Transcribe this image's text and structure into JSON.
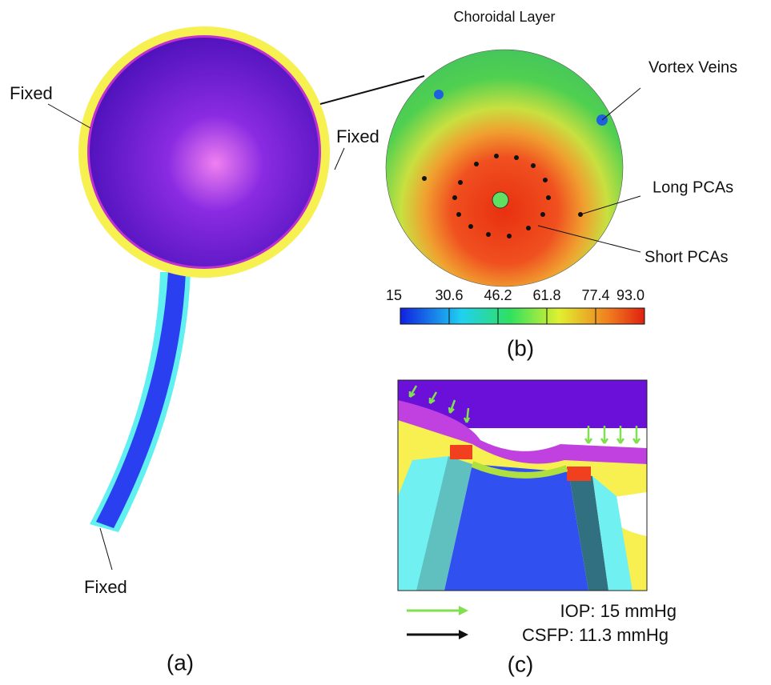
{
  "panel_a": {
    "labels": [
      "Fixed",
      "Fixed",
      "Fixed"
    ],
    "caption": "(a)"
  },
  "panel_b": {
    "title": "Choroidal Layer",
    "annotations": [
      "Vortex Veins",
      "Long PCAs",
      "Short PCAs"
    ],
    "colorbar": {
      "min": 15,
      "max": 93,
      "ticks": [
        15,
        30.6,
        46.2,
        61.8,
        77.4,
        {
          "value": 93,
          "label": "93.0"
        }
      ]
    },
    "caption": "(b)"
  },
  "panel_c": {
    "legend": [
      "IOP: 15 mmHg",
      "CSFP: 11.3 mmHg"
    ],
    "caption": "(c)"
  }
}
